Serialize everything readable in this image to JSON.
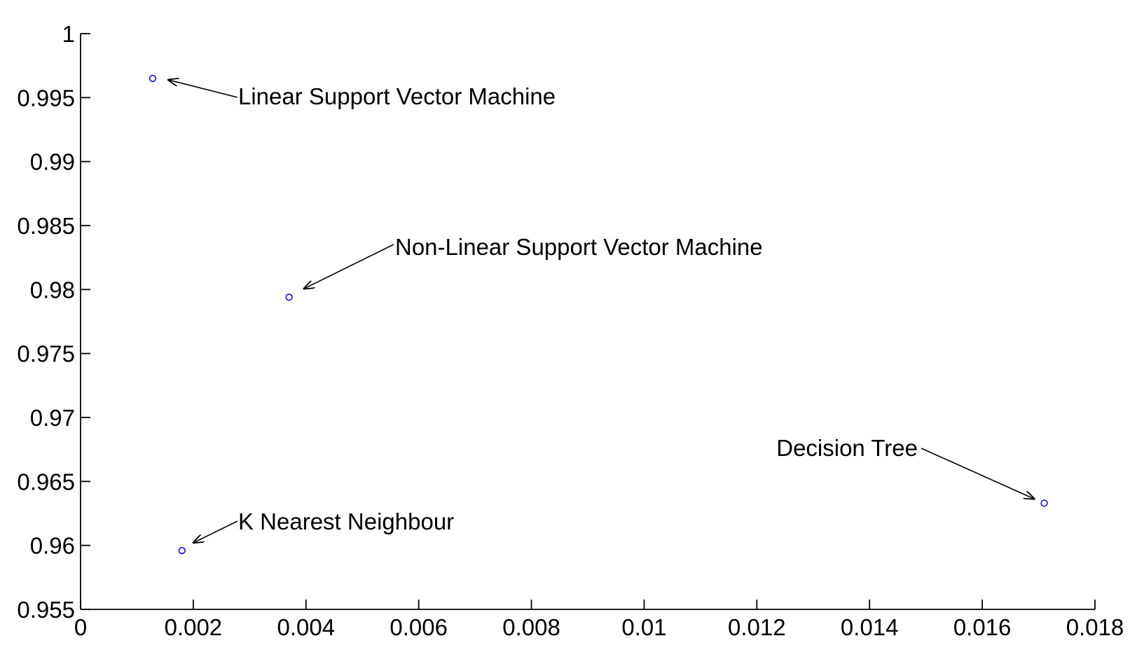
{
  "chart_data": {
    "type": "scatter",
    "title": "",
    "xlabel": "",
    "ylabel": "",
    "xlim": [
      0,
      0.018
    ],
    "ylim": [
      0.955,
      1
    ],
    "xticks": [
      0,
      0.002,
      0.004,
      0.006,
      0.008,
      0.01,
      0.012,
      0.014,
      0.016,
      0.018
    ],
    "yticks": [
      0.955,
      0.96,
      0.965,
      0.97,
      0.975,
      0.98,
      0.985,
      0.99,
      0.995,
      1
    ],
    "xtick_labels": [
      "0",
      "0.002",
      "0.004",
      "0.006",
      "0.008",
      "0.01",
      "0.012",
      "0.014",
      "0.016",
      "0.018"
    ],
    "ytick_labels": [
      "0.955",
      "0.96",
      "0.965",
      "0.97",
      "0.975",
      "0.98",
      "0.985",
      "0.99",
      "0.995",
      "1"
    ],
    "grid": false,
    "marker": "circle",
    "marker_color": "#0000ff",
    "points": [
      {
        "label": "Linear Support Vector Machine",
        "x": 0.00128,
        "y": 0.9965
      },
      {
        "label": "Non-Linear Support Vector Machine",
        "x": 0.0037,
        "y": 0.9794
      },
      {
        "label": "K Nearest Neighbour",
        "x": 0.0018,
        "y": 0.9596
      },
      {
        "label": "Decision Tree",
        "x": 0.0171,
        "y": 0.9633
      }
    ]
  }
}
